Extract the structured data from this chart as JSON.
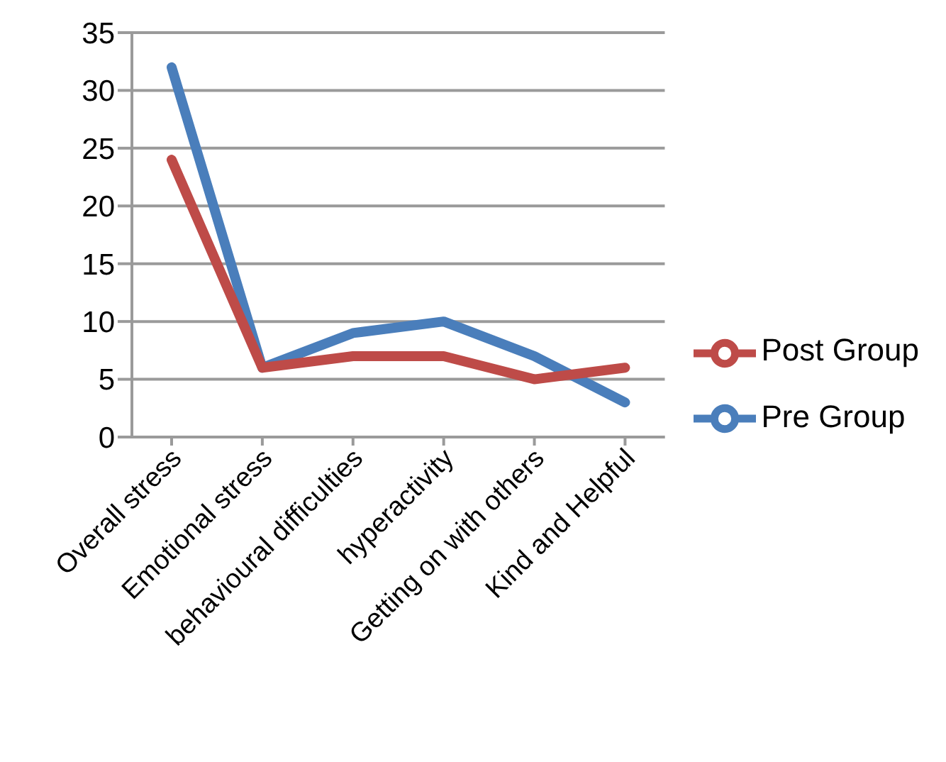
{
  "chart_data": {
    "type": "line",
    "categories": [
      "Overall stress",
      "Emotional stress",
      "behavioural difficulties",
      "hyperactivity",
      "Getting on with others",
      "Kind and Helpful"
    ],
    "series": [
      {
        "name": "Pre Group",
        "color": "#4a7ebb",
        "values": [
          32,
          6,
          9,
          10,
          7,
          3
        ]
      },
      {
        "name": "Post Group",
        "color": "#be4b48",
        "values": [
          24,
          6,
          7,
          7,
          5,
          6
        ]
      }
    ],
    "ylim": [
      0,
      35
    ],
    "yticks": [
      0,
      5,
      10,
      15,
      20,
      25,
      30,
      35
    ],
    "grid": "y",
    "legend": "right",
    "marker": "none",
    "line_style": "solid"
  }
}
